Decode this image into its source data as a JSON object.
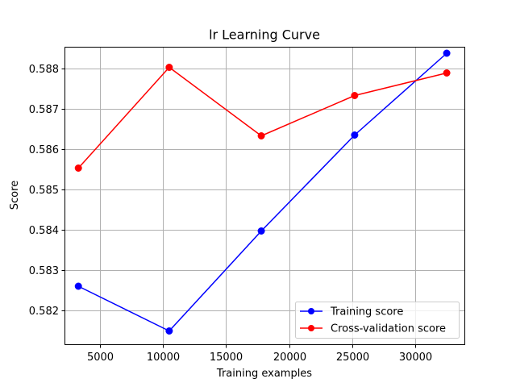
{
  "chart_data": {
    "type": "line",
    "title": "lr Learning Curve",
    "xlabel": "Training examples",
    "ylabel": "Score",
    "xlim": [
      2200,
      33900
    ],
    "ylim": [
      0.58116,
      0.58854
    ],
    "xticks": [
      5000,
      10000,
      15000,
      20000,
      25000,
      30000
    ],
    "xtick_labels": [
      "5000",
      "10000",
      "15000",
      "20000",
      "25000",
      "30000"
    ],
    "yticks": [
      0.582,
      0.583,
      0.584,
      0.585,
      0.586,
      0.587,
      0.588
    ],
    "ytick_labels": [
      "0.582",
      "0.583",
      "0.584",
      "0.585",
      "0.586",
      "0.587",
      "0.588"
    ],
    "grid": true,
    "legend_position": "bottom-right",
    "x": [
      3300,
      10500,
      17800,
      25200,
      32500
    ],
    "series": [
      {
        "name": "Training score",
        "color": "#0000ff",
        "marker": "circle",
        "values": [
          0.5826,
          0.58149,
          0.58397,
          0.58635,
          0.58838
        ]
      },
      {
        "name": "Cross-validation score",
        "color": "#ff0000",
        "marker": "circle",
        "values": [
          0.58553,
          0.58803,
          0.58633,
          0.58733,
          0.58789
        ]
      }
    ]
  }
}
